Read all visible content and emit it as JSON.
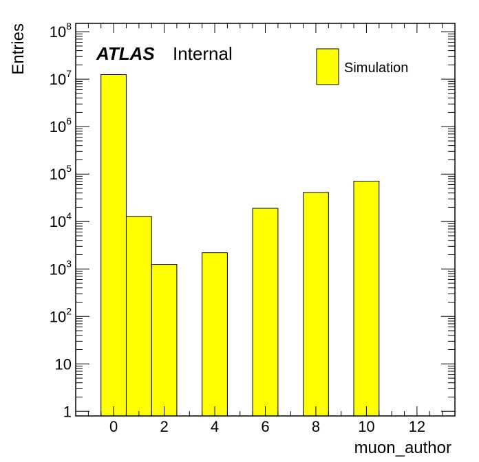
{
  "chart_data": {
    "type": "bar",
    "xlabel": "muon_author",
    "ylabel": "Entries",
    "log_y": true,
    "xlim": [
      -1.5,
      13.5
    ],
    "ylim": [
      0.8,
      150000000
    ],
    "bin_width": 1,
    "bins": [
      {
        "x": 0,
        "value": 12500000
      },
      {
        "x": 1,
        "value": 12800
      },
      {
        "x": 2,
        "value": 1250
      },
      {
        "x": 4,
        "value": 2200
      },
      {
        "x": 6,
        "value": 19000
      },
      {
        "x": 8,
        "value": 41000
      },
      {
        "x": 10,
        "value": 71000
      }
    ],
    "x_ticks": [
      "0",
      "2",
      "4",
      "6",
      "8",
      "10",
      "12"
    ],
    "y_ticks": [
      {
        "base": "1",
        "exp": ""
      },
      {
        "base": "10",
        "exp": ""
      },
      {
        "base": "10",
        "exp": "2"
      },
      {
        "base": "10",
        "exp": "3"
      },
      {
        "base": "10",
        "exp": "4"
      },
      {
        "base": "10",
        "exp": "5"
      },
      {
        "base": "10",
        "exp": "6"
      },
      {
        "base": "10",
        "exp": "7"
      },
      {
        "base": "10",
        "exp": "8"
      }
    ],
    "label_bold": "ATLAS",
    "label_regular": "Internal",
    "legend": [
      {
        "name": "Simulation",
        "color": "#ffff00"
      }
    ],
    "fill_color": "#ffff00",
    "grid": false,
    "legend_position": "top-right"
  }
}
